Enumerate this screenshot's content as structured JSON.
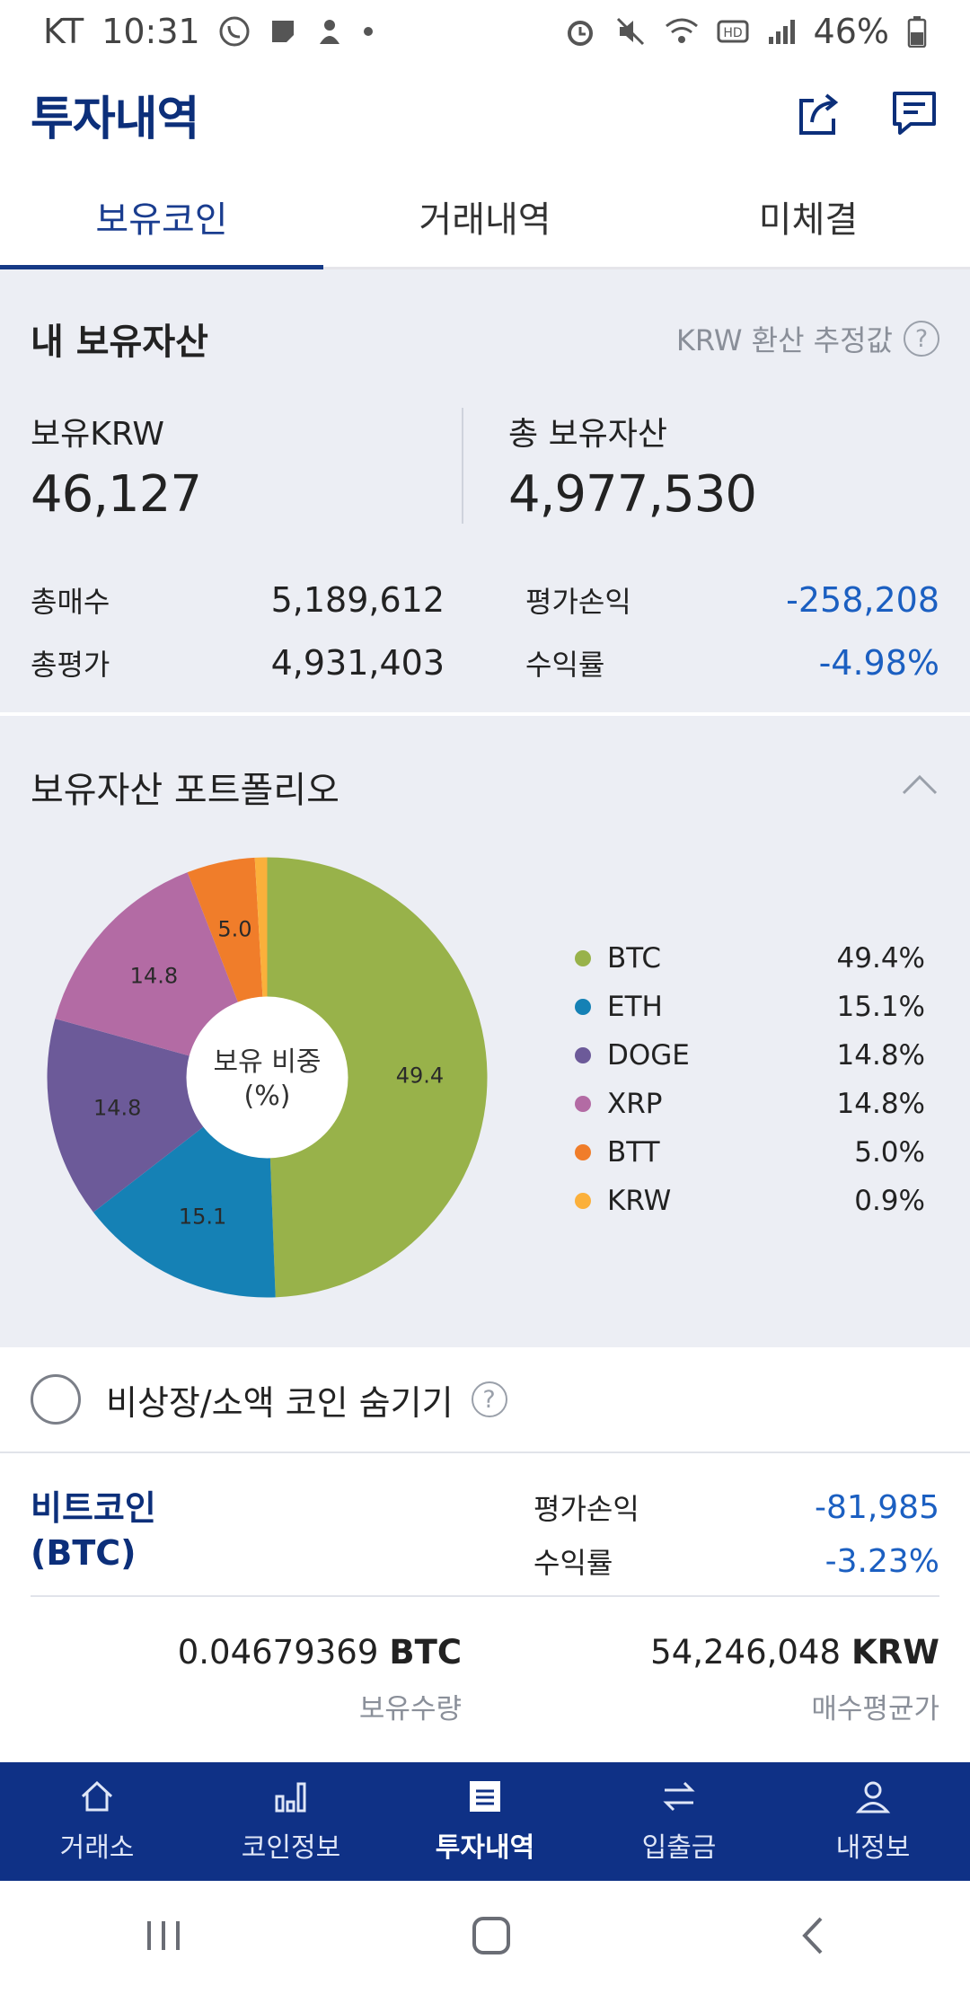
{
  "status_bar": {
    "carrier": "KT",
    "time": "10:31",
    "battery": "46%"
  },
  "header": {
    "title": "투자내역",
    "share_icon": "share-icon",
    "chat_icon": "chat-icon"
  },
  "tabs": [
    {
      "label": "보유코인",
      "active": true
    },
    {
      "label": "거래내역",
      "active": false
    },
    {
      "label": "미체결",
      "active": false
    }
  ],
  "summary": {
    "title": "내 보유자산",
    "krw_note": "KRW 환산 추정값",
    "held_krw_label": "보유KRW",
    "held_krw_value": "46,127",
    "total_assets_label": "총 보유자산",
    "total_assets_value": "4,977,530",
    "total_buy_label": "총매수",
    "total_buy_value": "5,189,612",
    "total_eval_label": "총평가",
    "total_eval_value": "4,931,403",
    "pnl_label": "평가손익",
    "pnl_value": "-258,208",
    "return_label": "수익률",
    "return_value": "-4.98%"
  },
  "portfolio": {
    "title": "보유자산 포트폴리오",
    "center_label_1": "보유 비중",
    "center_label_2": "(%)"
  },
  "chart_data": {
    "type": "pie",
    "title": "보유 비중 (%)",
    "categories": [
      "BTC",
      "ETH",
      "DOGE",
      "XRP",
      "BTT",
      "KRW"
    ],
    "values": [
      49.4,
      15.1,
      14.8,
      14.8,
      5.0,
      0.9
    ],
    "percent_labels": [
      "49.4%",
      "15.1%",
      "14.8%",
      "14.8%",
      "5.0%",
      "0.9%"
    ],
    "slice_labels": [
      "49.4",
      "15.1",
      "14.8",
      "14.8",
      "5.0",
      ""
    ],
    "colors": [
      "#98b24a",
      "#1581b5",
      "#6c5a99",
      "#b36ba4",
      "#f07d2a",
      "#fbb03b"
    ],
    "legend_position": "right"
  },
  "hide_toggle": {
    "label": "비상장/소액 코인 숨기기"
  },
  "coin": {
    "name_line1": "비트코인",
    "name_line2": "(BTC)",
    "pnl_label": "평가손익",
    "pnl_value": "-81,985",
    "return_label": "수익률",
    "return_value": "-3.23%",
    "quantity_value": "0.04679369",
    "quantity_unit": "BTC",
    "quantity_label": "보유수량",
    "avg_price_value": "54,246,048",
    "avg_price_unit": "KRW",
    "avg_price_label": "매수평균가"
  },
  "bottom_nav": [
    {
      "label": "거래소",
      "icon": "home-icon",
      "active": false
    },
    {
      "label": "코인정보",
      "icon": "bar-chart-icon",
      "active": false
    },
    {
      "label": "투자내역",
      "icon": "list-icon",
      "active": true
    },
    {
      "label": "입출금",
      "icon": "transfer-icon",
      "active": false
    },
    {
      "label": "내정보",
      "icon": "user-icon",
      "active": false
    }
  ]
}
